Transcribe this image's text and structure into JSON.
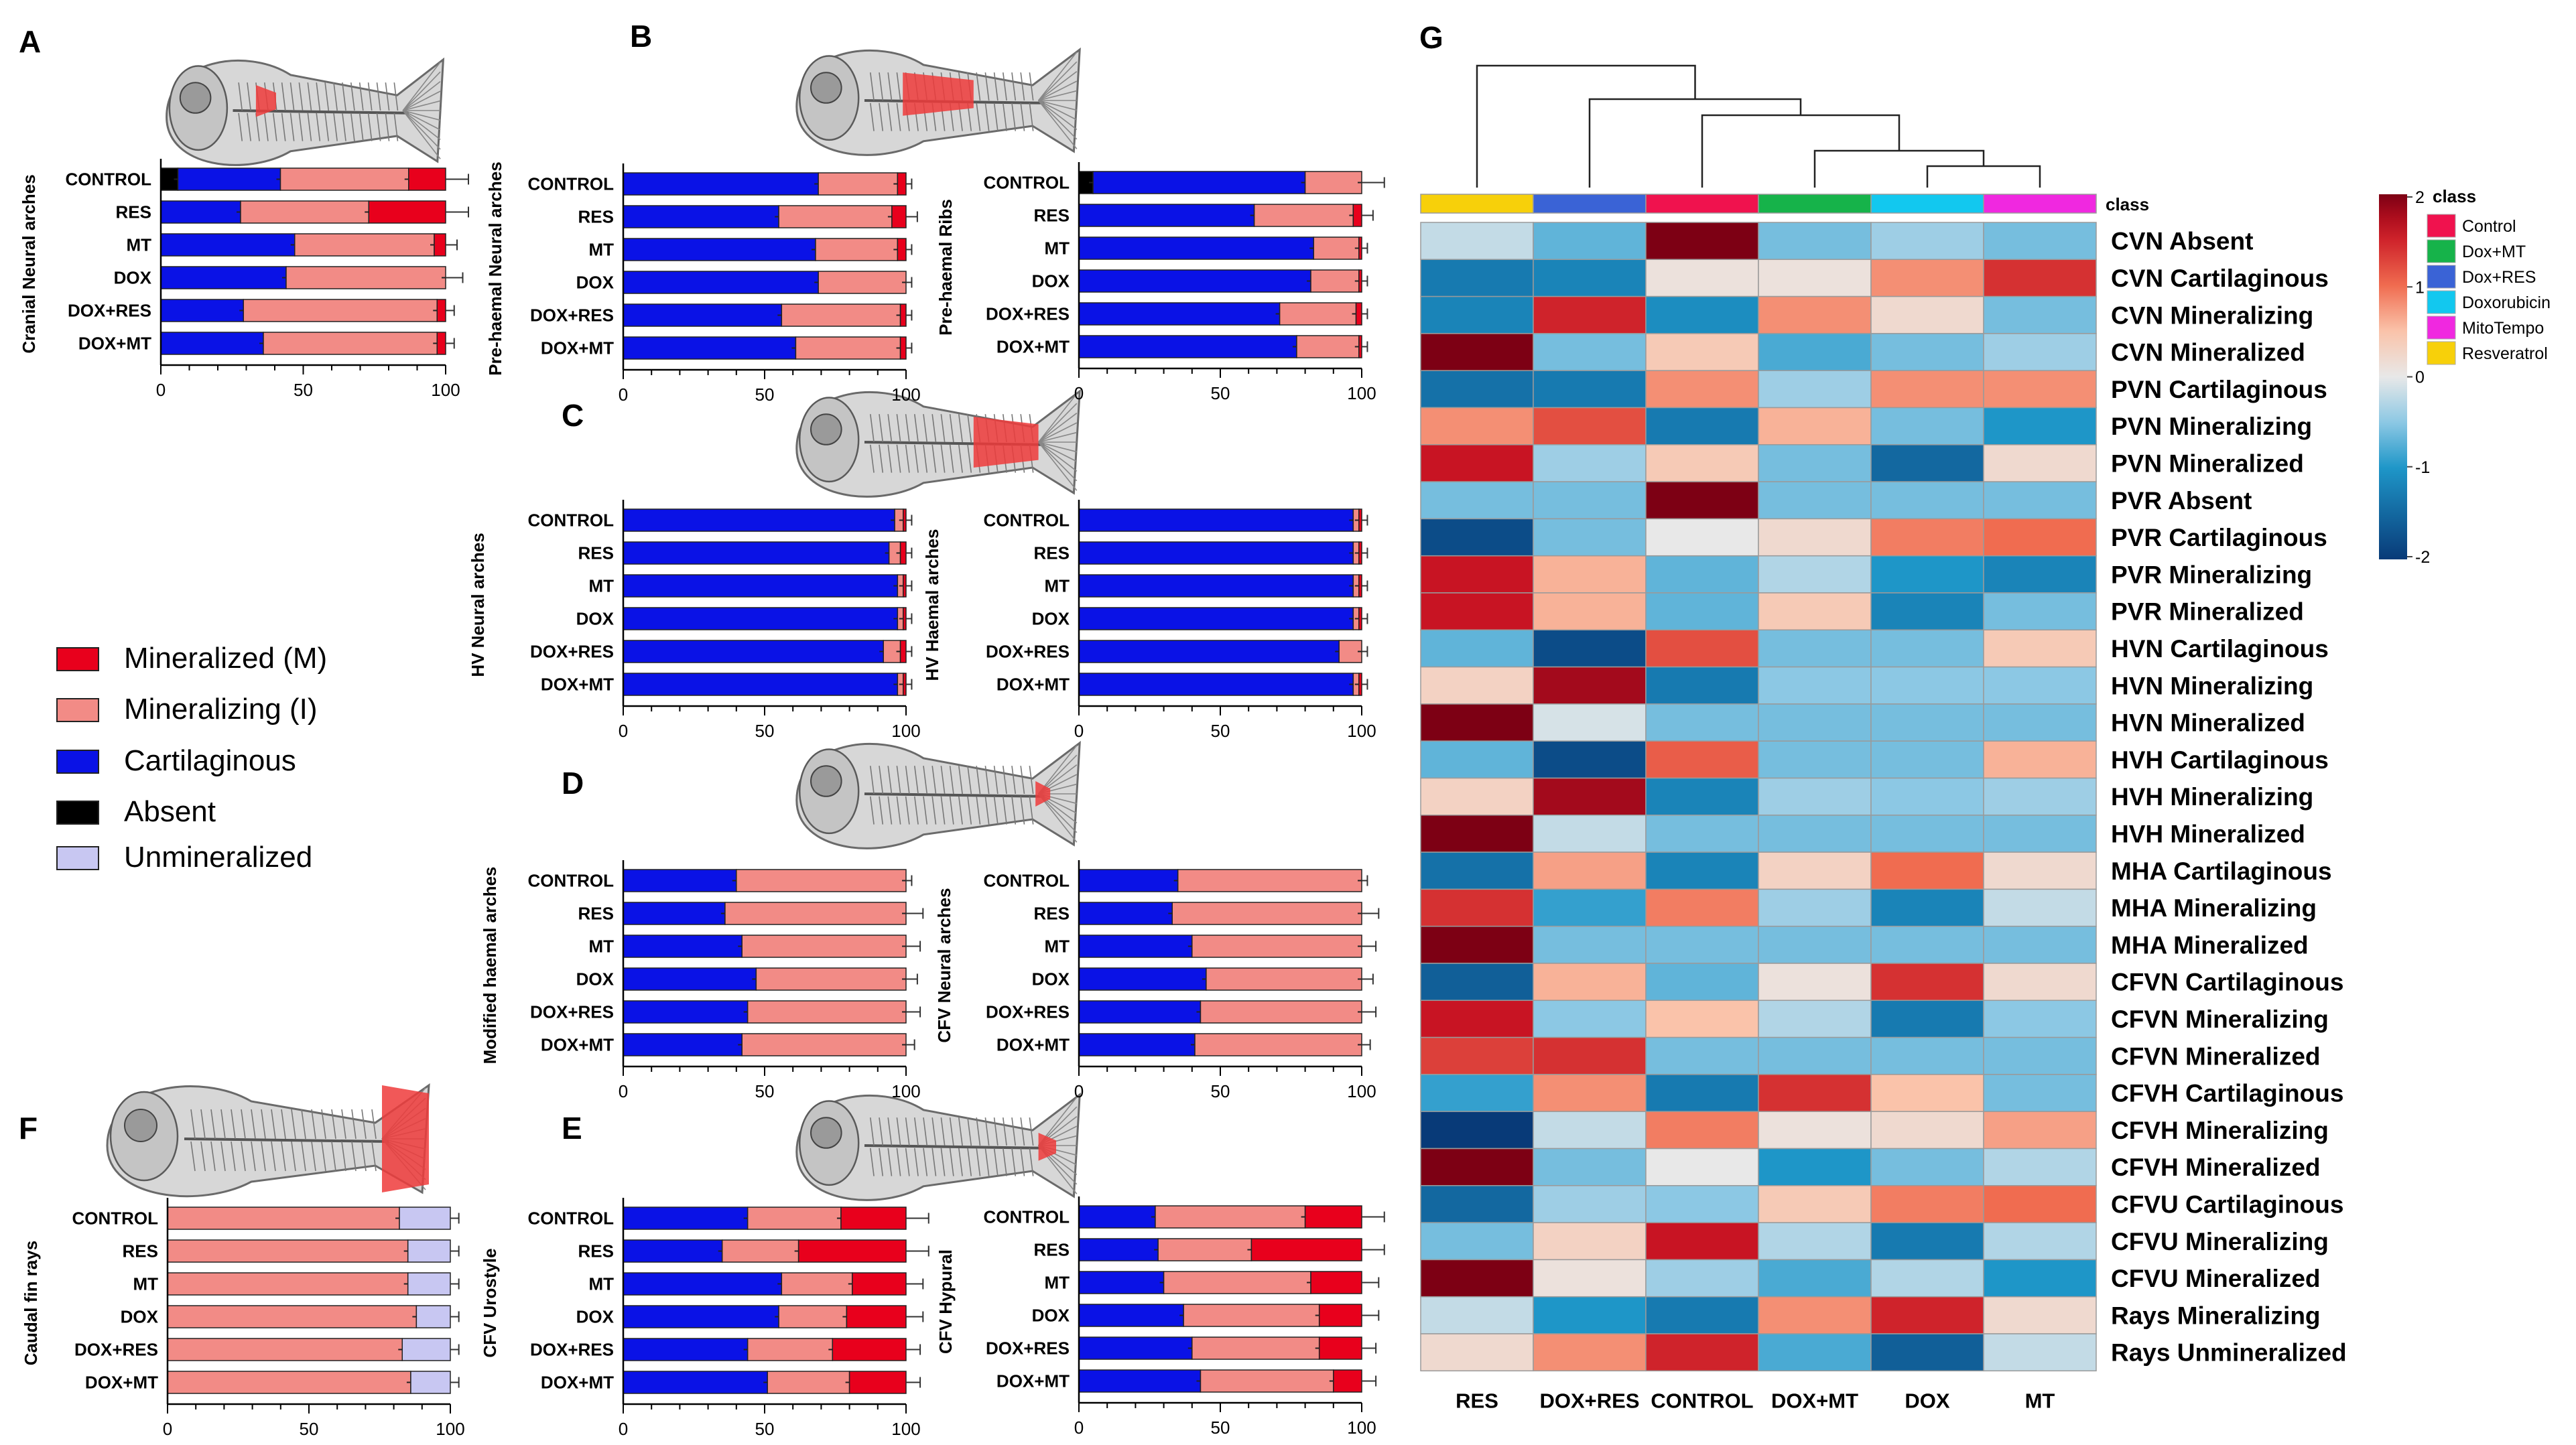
{
  "figure": {
    "panel_letters": [
      "A",
      "B",
      "C",
      "D",
      "E",
      "F",
      "G"
    ],
    "legend": [
      {
        "key": "mineralized",
        "label": "Mineralized (M)",
        "color": "#e8001c"
      },
      {
        "key": "mineralizing",
        "label": "Mineralizing (I)",
        "color": "#f28b86"
      },
      {
        "key": "cartilaginous",
        "label": "Cartilaginous",
        "color": "#0a12e6"
      },
      {
        "key": "absent",
        "label": "Absent",
        "color": "#000000"
      },
      {
        "key": "unmineralized",
        "label": "Unmineralized",
        "color": "#c8c7f2"
      }
    ],
    "groups": [
      "CONTROL",
      "RES",
      "MT",
      "DOX",
      "DOX+RES",
      "DOX+MT"
    ],
    "axis_ticks": [
      "0",
      "50",
      "100"
    ]
  },
  "chart_data": [
    {
      "id": "A",
      "type": "bar",
      "stacked": true,
      "orientation": "horizontal",
      "ylabel": "Cranial Neural arches",
      "categories": [
        "CONTROL",
        "RES",
        "MT",
        "DOX",
        "DOX+RES",
        "DOX+MT"
      ],
      "xlim": [
        0,
        100
      ],
      "series": [
        {
          "name": "Absent",
          "values": [
            6,
            0,
            0,
            0,
            0,
            0
          ]
        },
        {
          "name": "Cartilaginous",
          "values": [
            36,
            28,
            47,
            44,
            29,
            36
          ]
        },
        {
          "name": "Mineralizing (I)",
          "values": [
            45,
            45,
            49,
            56,
            68,
            61
          ]
        },
        {
          "name": "Mineralized (M)",
          "values": [
            13,
            27,
            4,
            0,
            3,
            3
          ]
        }
      ],
      "errors": [
        16,
        18,
        4,
        6,
        3,
        3
      ]
    },
    {
      "id": "B1",
      "type": "bar",
      "stacked": true,
      "orientation": "horizontal",
      "ylabel": "Pre-haemal Neural arches",
      "categories": [
        "CONTROL",
        "RES",
        "MT",
        "DOX",
        "DOX+RES",
        "DOX+MT"
      ],
      "xlim": [
        0,
        100
      ],
      "series": [
        {
          "name": "Absent",
          "values": [
            0,
            0,
            0,
            0,
            0,
            0
          ]
        },
        {
          "name": "Cartilaginous",
          "values": [
            69,
            55,
            68,
            69,
            56,
            61
          ]
        },
        {
          "name": "Mineralizing (I)",
          "values": [
            28,
            40,
            29,
            31,
            42,
            37
          ]
        },
        {
          "name": "Mineralized (M)",
          "values": [
            3,
            5,
            3,
            0,
            2,
            2
          ]
        }
      ],
      "errors": [
        2,
        4,
        2,
        2,
        2,
        2
      ]
    },
    {
      "id": "B2",
      "type": "bar",
      "stacked": true,
      "orientation": "horizontal",
      "ylabel": "Pre-haemal Ribs",
      "categories": [
        "CONTROL",
        "RES",
        "MT",
        "DOX",
        "DOX+RES",
        "DOX+MT"
      ],
      "xlim": [
        0,
        100
      ],
      "series": [
        {
          "name": "Absent",
          "values": [
            5,
            0,
            0,
            0,
            0,
            0
          ]
        },
        {
          "name": "Cartilaginous",
          "values": [
            75,
            62,
            83,
            82,
            71,
            77
          ]
        },
        {
          "name": "Mineralizing (I)",
          "values": [
            20,
            35,
            16,
            17,
            27,
            22
          ]
        },
        {
          "name": "Mineralized (M)",
          "values": [
            0,
            3,
            1,
            1,
            2,
            1
          ]
        }
      ],
      "errors": [
        10,
        4,
        2,
        2,
        2,
        2
      ]
    },
    {
      "id": "C1",
      "type": "bar",
      "stacked": true,
      "orientation": "horizontal",
      "ylabel": "HV Neural arches",
      "categories": [
        "CONTROL",
        "RES",
        "MT",
        "DOX",
        "DOX+RES",
        "DOX+MT"
      ],
      "xlim": [
        0,
        100
      ],
      "series": [
        {
          "name": "Cartilaginous",
          "values": [
            96,
            94,
            97,
            97,
            92,
            97
          ]
        },
        {
          "name": "Mineralizing (I)",
          "values": [
            3,
            4,
            2,
            2,
            6,
            2
          ]
        },
        {
          "name": "Mineralized (M)",
          "values": [
            1,
            2,
            1,
            1,
            2,
            1
          ]
        }
      ],
      "errors": [
        2,
        2,
        2,
        2,
        2,
        2
      ]
    },
    {
      "id": "C2",
      "type": "bar",
      "stacked": true,
      "orientation": "horizontal",
      "ylabel": "HV Haemal arches",
      "categories": [
        "CONTROL",
        "RES",
        "MT",
        "DOX",
        "DOX+RES",
        "DOX+MT"
      ],
      "xlim": [
        0,
        100
      ],
      "series": [
        {
          "name": "Cartilaginous",
          "values": [
            97,
            97,
            97,
            97,
            92,
            97
          ]
        },
        {
          "name": "Mineralizing (I)",
          "values": [
            2,
            2,
            2,
            2,
            8,
            2
          ]
        },
        {
          "name": "Mineralized (M)",
          "values": [
            1,
            1,
            1,
            1,
            0,
            1
          ]
        }
      ],
      "errors": [
        2,
        2,
        2,
        2,
        2,
        2
      ]
    },
    {
      "id": "D1",
      "type": "bar",
      "stacked": true,
      "orientation": "horizontal",
      "ylabel": "Modified haemal arches",
      "categories": [
        "CONTROL",
        "RES",
        "MT",
        "DOX",
        "DOX+RES",
        "DOX+MT"
      ],
      "xlim": [
        0,
        100
      ],
      "series": [
        {
          "name": "Cartilaginous",
          "values": [
            40,
            36,
            42,
            47,
            44,
            42
          ]
        },
        {
          "name": "Mineralizing (I)",
          "values": [
            60,
            64,
            58,
            53,
            56,
            58
          ]
        },
        {
          "name": "Mineralized (M)",
          "values": [
            0,
            0,
            0,
            0,
            0,
            0
          ]
        }
      ],
      "errors": [
        2,
        6,
        5,
        4,
        5,
        3
      ]
    },
    {
      "id": "D2",
      "type": "bar",
      "stacked": true,
      "orientation": "horizontal",
      "ylabel": "CFV Neural arches",
      "categories": [
        "CONTROL",
        "RES",
        "MT",
        "DOX",
        "DOX+RES",
        "DOX+MT"
      ],
      "xlim": [
        0,
        100
      ],
      "series": [
        {
          "name": "Cartilaginous",
          "values": [
            35,
            33,
            40,
            45,
            43,
            41
          ]
        },
        {
          "name": "Mineralizing (I)",
          "values": [
            65,
            67,
            60,
            55,
            57,
            59
          ]
        },
        {
          "name": "Mineralized (M)",
          "values": [
            0,
            0,
            0,
            0,
            0,
            0
          ]
        }
      ],
      "errors": [
        2,
        6,
        5,
        4,
        5,
        3
      ]
    },
    {
      "id": "E1",
      "type": "bar",
      "stacked": true,
      "orientation": "horizontal",
      "ylabel": "CFV Urostyle",
      "categories": [
        "CONTROL",
        "RES",
        "MT",
        "DOX",
        "DOX+RES",
        "DOX+MT"
      ],
      "xlim": [
        0,
        100
      ],
      "series": [
        {
          "name": "Cartilaginous",
          "values": [
            44,
            35,
            56,
            55,
            44,
            51
          ]
        },
        {
          "name": "Mineralizing (I)",
          "values": [
            33,
            27,
            25,
            24,
            30,
            29
          ]
        },
        {
          "name": "Mineralized (M)",
          "values": [
            23,
            38,
            19,
            21,
            26,
            20
          ]
        }
      ],
      "errors": [
        8,
        8,
        6,
        6,
        5,
        5
      ]
    },
    {
      "id": "E2",
      "type": "bar",
      "stacked": true,
      "orientation": "horizontal",
      "ylabel": "CFV Hypural",
      "categories": [
        "CONTROL",
        "RES",
        "MT",
        "DOX",
        "DOX+RES",
        "DOX+MT"
      ],
      "xlim": [
        0,
        100
      ],
      "series": [
        {
          "name": "Cartilaginous",
          "values": [
            27,
            28,
            30,
            37,
            40,
            43
          ]
        },
        {
          "name": "Mineralizing (I)",
          "values": [
            53,
            33,
            52,
            48,
            45,
            47
          ]
        },
        {
          "name": "Mineralized (M)",
          "values": [
            20,
            39,
            18,
            15,
            15,
            10
          ]
        }
      ],
      "errors": [
        8,
        8,
        6,
        6,
        5,
        5
      ]
    },
    {
      "id": "F",
      "type": "bar",
      "stacked": true,
      "orientation": "horizontal",
      "ylabel": "Caudal fin rays",
      "categories": [
        "CONTROL",
        "RES",
        "MT",
        "DOX",
        "DOX+RES",
        "DOX+MT"
      ],
      "xlim": [
        0,
        100
      ],
      "series": [
        {
          "name": "Mineralizing (I)",
          "values": [
            82,
            85,
            85,
            88,
            83,
            86
          ]
        },
        {
          "name": "Unmineralized",
          "values": [
            18,
            15,
            15,
            12,
            17,
            14
          ]
        }
      ],
      "errors": [
        3,
        3,
        3,
        3,
        3,
        3
      ]
    },
    {
      "id": "G",
      "type": "heatmap",
      "columns": [
        "RES",
        "DOX+RES",
        "CONTROL",
        "DOX+MT",
        "DOX",
        "MT"
      ],
      "column_classes": [
        "Resveratrol",
        "Dox+RES",
        "Control",
        "Dox+MT",
        "Doxorubicin",
        "MitoTempo"
      ],
      "class_row_label": "class",
      "rows": [
        "CVN Absent",
        "CVN Cartilaginous",
        "CVN Mineralizing",
        "CVN Mineralized",
        "PVN Cartilaginous",
        "PVN Mineralizing",
        "PVN Mineralized",
        "PVR Absent",
        "PVR Cartilaginous",
        "PVR Mineralizing",
        "PVR Mineralized",
        "HVN Cartilaginous",
        "HVN Mineralizing",
        "HVN Mineralized",
        "HVH Cartilaginous",
        "HVH Mineralizing",
        "HVH Mineralized",
        "MHA Cartilaginous",
        "MHA Mineralizing",
        "MHA Mineralized",
        "CFVN Cartilaginous",
        "CFVN Mineralizing",
        "CFVN Mineralized",
        "CFVH Cartilaginous",
        "CFVH Mineralizing",
        "CFVH Mineralized",
        "CFVU Cartilaginous",
        "CFVU Mineralizing",
        "CFVU Mineralized",
        "Rays Mineralizing",
        "Rays Unmineralized"
      ],
      "values": [
        [
          -0.2,
          -0.7,
          2.0,
          -0.6,
          -0.4,
          -0.6
        ],
        [
          -1.3,
          -1.2,
          0.1,
          0.1,
          0.8,
          1.4
        ],
        [
          -1.2,
          1.5,
          -1.1,
          0.8,
          0.2,
          -0.6
        ],
        [
          2.0,
          -0.6,
          0.4,
          -0.8,
          -0.6,
          -0.4
        ],
        [
          -1.4,
          -1.3,
          0.8,
          -0.4,
          0.8,
          0.8
        ],
        [
          0.8,
          1.2,
          -1.3,
          0.6,
          -0.6,
          -1.0
        ],
        [
          1.6,
          -0.4,
          0.4,
          -0.6,
          -1.5,
          0.2
        ],
        [
          -0.6,
          -0.6,
          2.0,
          -0.6,
          -0.6,
          -0.6
        ],
        [
          -1.8,
          -0.6,
          0.0,
          0.2,
          0.9,
          1.0
        ],
        [
          1.6,
          0.6,
          -0.7,
          -0.3,
          -1.0,
          -1.2
        ],
        [
          1.6,
          0.6,
          -0.7,
          0.4,
          -1.2,
          -0.6
        ],
        [
          -0.7,
          -1.8,
          1.2,
          -0.6,
          -0.6,
          0.4
        ],
        [
          0.3,
          1.8,
          -1.3,
          -0.5,
          -0.5,
          -0.5
        ],
        [
          2.0,
          -0.1,
          -0.6,
          -0.6,
          -0.6,
          -0.6
        ],
        [
          -0.7,
          -1.8,
          1.1,
          -0.6,
          -0.6,
          0.6
        ],
        [
          0.3,
          1.8,
          -1.2,
          -0.4,
          -0.5,
          -0.4
        ],
        [
          2.0,
          -0.2,
          -0.6,
          -0.6,
          -0.6,
          -0.6
        ],
        [
          -1.4,
          0.7,
          -1.2,
          0.3,
          1.0,
          0.2
        ],
        [
          1.4,
          -0.9,
          0.9,
          -0.4,
          -1.2,
          -0.2
        ],
        [
          2.0,
          -0.6,
          -0.6,
          -0.6,
          -0.6,
          -0.6
        ],
        [
          -1.6,
          0.6,
          -0.7,
          0.1,
          1.4,
          0.2
        ],
        [
          1.6,
          -0.5,
          0.5,
          -0.3,
          -1.3,
          -0.5
        ],
        [
          1.3,
          1.4,
          -0.6,
          -0.6,
          -0.6,
          -0.6
        ],
        [
          -0.9,
          0.8,
          -1.3,
          1.4,
          0.5,
          -0.6
        ],
        [
          -2.0,
          -0.2,
          0.9,
          0.1,
          0.2,
          0.7
        ],
        [
          2.0,
          -0.6,
          0.0,
          -1.0,
          -0.6,
          -0.3
        ],
        [
          -1.5,
          -0.4,
          -0.5,
          0.4,
          0.9,
          1.0
        ],
        [
          -0.6,
          0.3,
          1.6,
          -0.3,
          -1.3,
          -0.3
        ],
        [
          2.0,
          0.1,
          -0.4,
          -0.8,
          -0.3,
          -1.0
        ],
        [
          -0.2,
          -1.0,
          -1.3,
          0.8,
          1.5,
          0.2
        ],
        [
          0.2,
          0.8,
          1.5,
          -0.8,
          -1.6,
          -0.2
        ]
      ],
      "colorbar": {
        "ticks": [
          "2",
          "1",
          "0",
          "-1",
          "-2"
        ],
        "range": [
          -2,
          2
        ]
      },
      "class_legend": {
        "title": "class",
        "items": [
          {
            "label": "Control",
            "color": "#f0124e"
          },
          {
            "label": "Dox+MT",
            "color": "#16b34a"
          },
          {
            "label": "Dox+RES",
            "color": "#3a63d6"
          },
          {
            "label": "Doxorubicin",
            "color": "#12c8ef"
          },
          {
            "label": "MitoTempo",
            "color": "#f028e0"
          },
          {
            "label": "Resveratrol",
            "color": "#f7d00a"
          }
        ]
      }
    }
  ]
}
